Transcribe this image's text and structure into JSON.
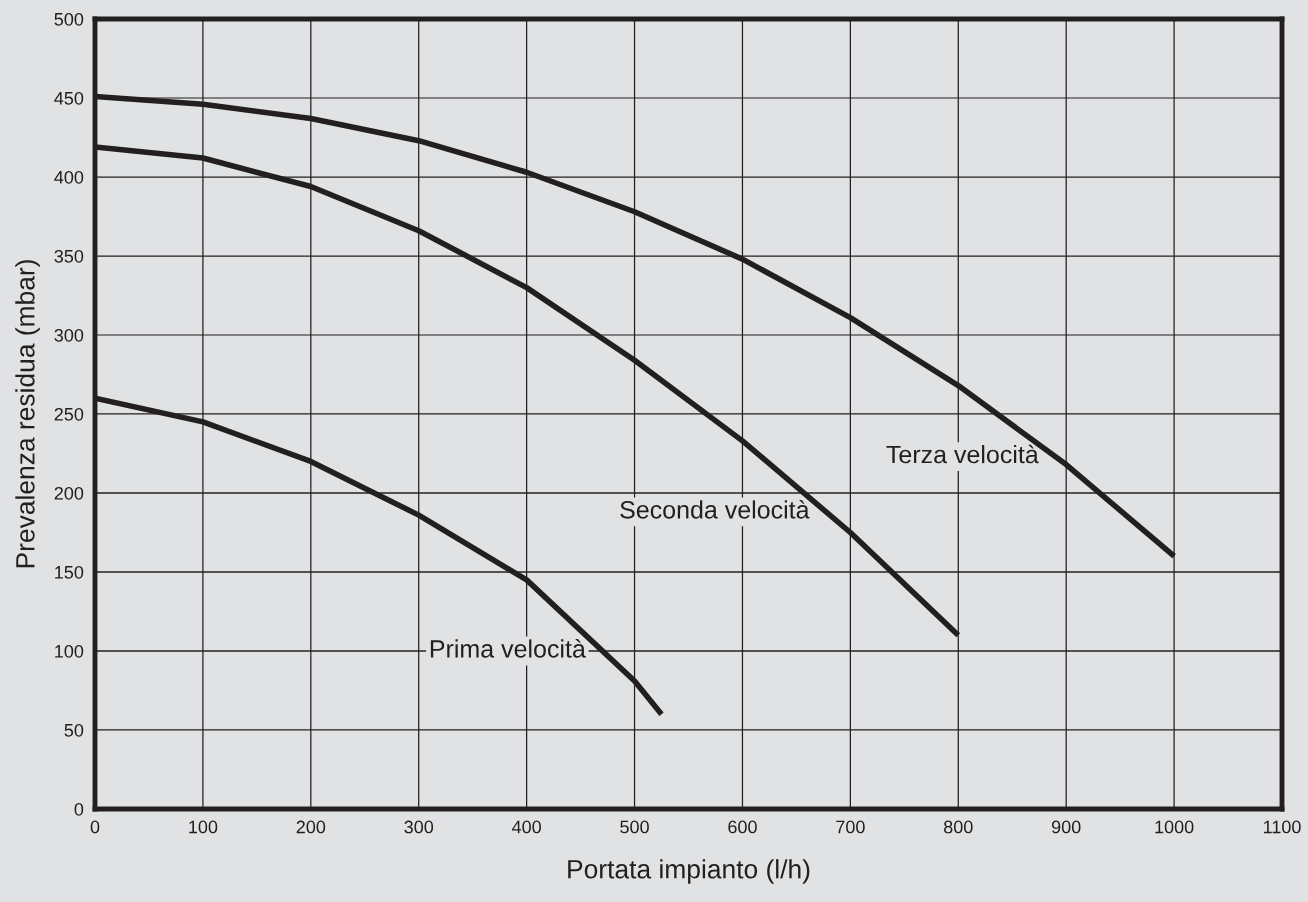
{
  "chart_data": {
    "type": "line",
    "xlabel": "Portata impianto (l/h)",
    "ylabel": "Prevalenza residua (mbar)",
    "xlim": [
      0,
      1100
    ],
    "xticks": [
      0,
      100,
      200,
      300,
      400,
      500,
      600,
      700,
      800,
      900,
      1000,
      1100
    ],
    "ylim": [
      0,
      500
    ],
    "yticks": [
      0,
      50,
      100,
      150,
      200,
      250,
      300,
      350,
      400,
      450,
      500
    ],
    "grid": true,
    "legend": false,
    "marker": "none",
    "line_style": "solid",
    "series": [
      {
        "name": "Prima velocità",
        "color": "#231f20",
        "x": [
          0,
          100,
          200,
          300,
          400,
          500,
          525
        ],
        "values": [
          260,
          245,
          220,
          186,
          145,
          81,
          60
        ]
      },
      {
        "name": "Seconda velocità",
        "color": "#231f20",
        "x": [
          0,
          100,
          200,
          300,
          400,
          500,
          600,
          700,
          800
        ],
        "values": [
          419,
          412,
          394,
          366,
          330,
          284,
          233,
          175,
          110
        ]
      },
      {
        "name": "Terza velocità",
        "color": "#231f20",
        "x": [
          0,
          100,
          200,
          300,
          400,
          500,
          600,
          700,
          800,
          900,
          1000
        ],
        "values": [
          451,
          446,
          437,
          423,
          403,
          378,
          348,
          311,
          268,
          218,
          160
        ]
      }
    ]
  }
}
